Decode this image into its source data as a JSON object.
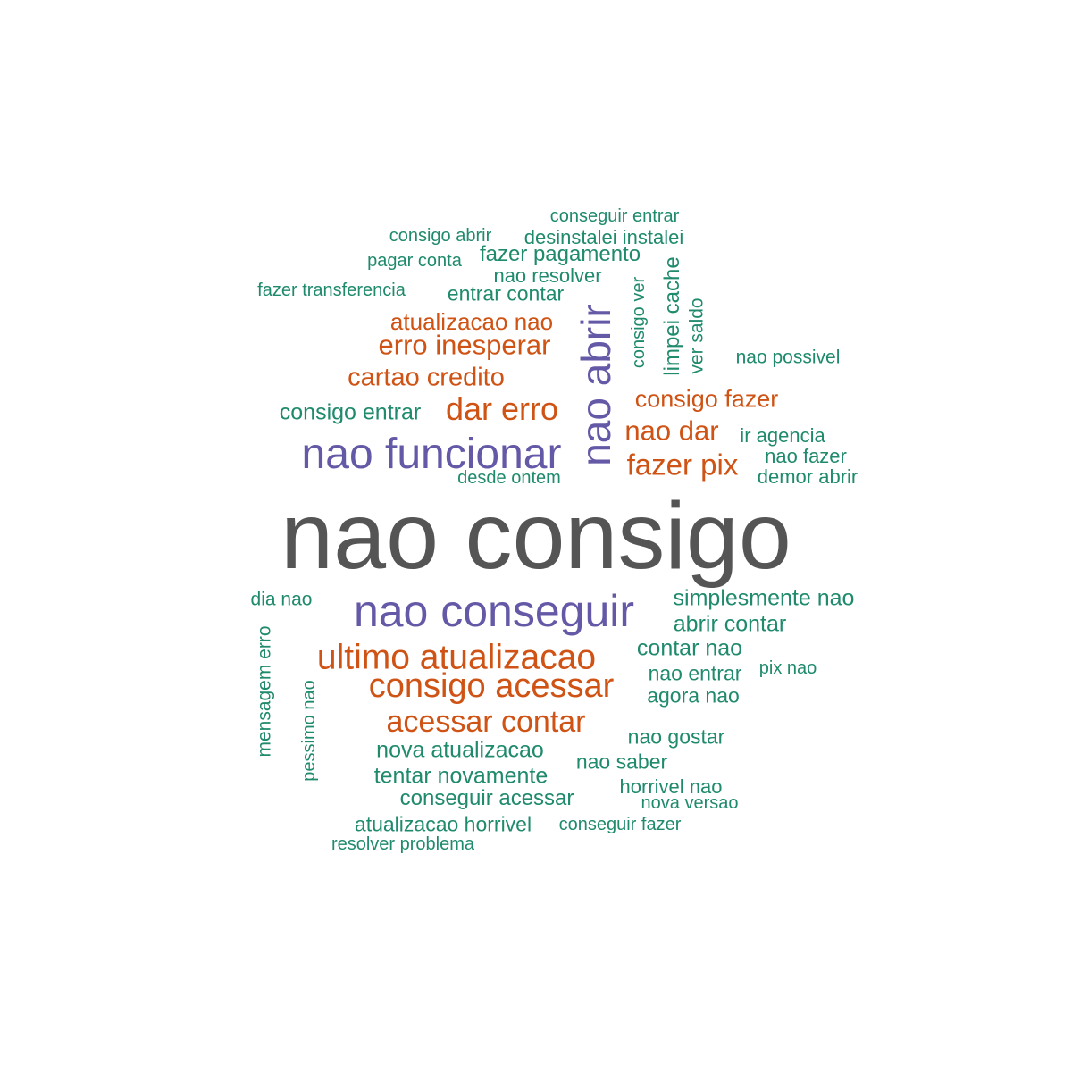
{
  "palette": {
    "gray": "#555555",
    "purple": "#6459a6",
    "orange": "#cf5314",
    "green": "#1f8a6c"
  },
  "words": [
    "nao consigo",
    "nao conseguir",
    "nao funcionar",
    "nao abrir",
    "ultimo atualizacao",
    "consigo acessar",
    "acessar contar",
    "dar erro",
    "erro inesperar",
    "fazer pix",
    "cartao credito",
    "atualizacao nao",
    "consigo fazer",
    "nao dar",
    "consigo entrar",
    "nova atualizacao",
    "tentar novamente",
    "simplesmente nao",
    "abrir contar",
    "contar nao",
    "conseguir acessar",
    "fazer pagamento",
    "desinstalei instalei",
    "nao resolver",
    "entrar contar",
    "atualizacao horrivel",
    "nao entrar",
    "agora nao",
    "nao gostar",
    "nao saber",
    "horrivel nao",
    "ir agencia",
    "nao fazer",
    "demor abrir",
    "conseguir entrar",
    "consigo abrir",
    "pagar conta",
    "fazer transferencia",
    "nao possivel",
    "limpei cache",
    "consigo ver",
    "ver saldo",
    "desde ontem",
    "dia nao",
    "mensagem erro",
    "pessimo nao",
    "pix nao",
    "nova versao",
    "conseguir fazer",
    "resolver problema"
  ]
}
